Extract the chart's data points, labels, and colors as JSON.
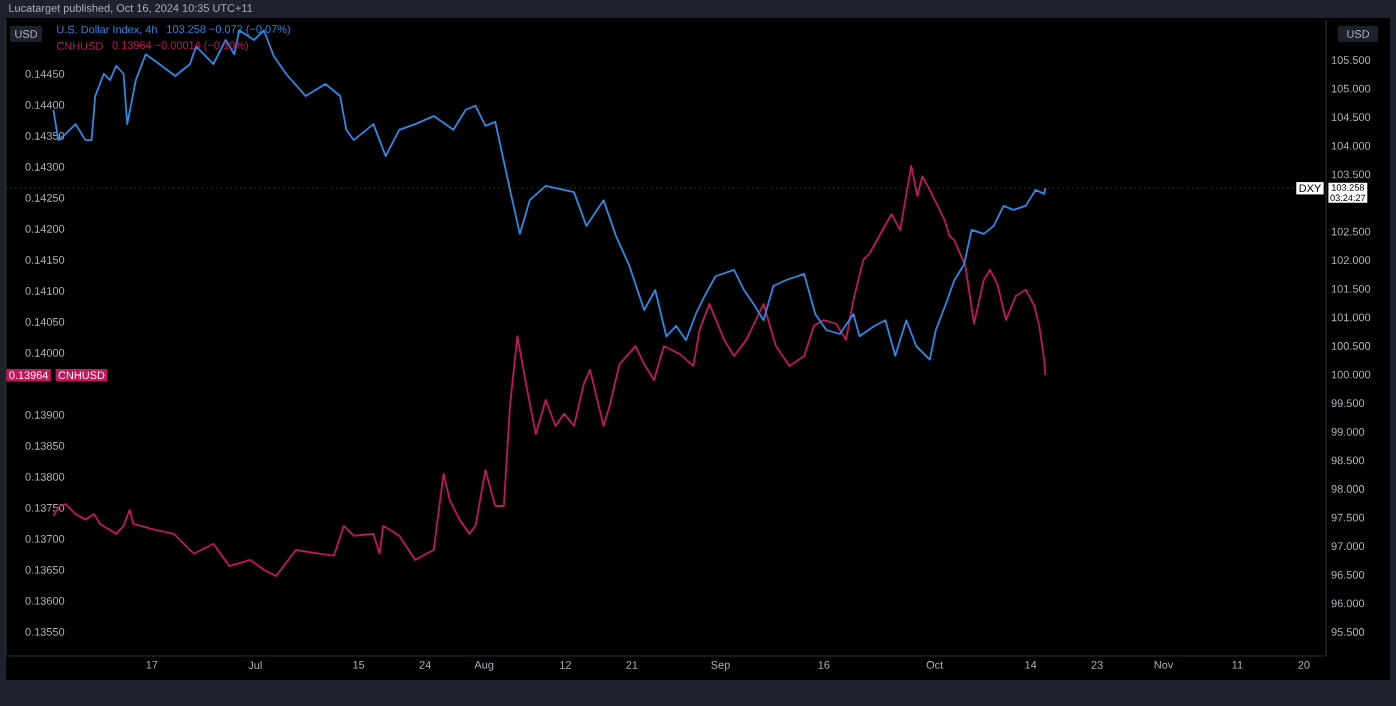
{
  "chart_data": {
    "type": "line",
    "annotations": [
      "Lucatarget published, Oct 16, 2024 10:35 UTC+11",
      "103.258  −0.072 (−0.07%)",
      "0.13964  −0.00014 (−0.10%)",
      "0.13964",
      "CNHUSD",
      "103.258",
      "03:24:27"
    ],
    "ylabel": "USD",
    "y2label": "USD",
    "legend": "top left",
    "marker": "none",
    "line_style": "solid",
    "grid": false,
    "xlim": [
      "2024-05-28T06:00",
      "2024-11-23"
    ],
    "xticks": [
      {
        "value": "2024-06-17",
        "label": "17"
      },
      {
        "value": "2024-07-01",
        "label": "Jul"
      },
      {
        "value": "2024-07-15",
        "label": "15"
      },
      {
        "value": "2024-07-24",
        "label": "24"
      },
      {
        "value": "2024-08-01",
        "label": "Aug"
      },
      {
        "value": "2024-08-12",
        "label": "12"
      },
      {
        "value": "2024-08-21",
        "label": "21"
      },
      {
        "value": "2024-09-02",
        "label": "Sep"
      },
      {
        "value": "2024-09-16",
        "label": "16"
      },
      {
        "value": "2024-10-01",
        "label": "Oct"
      },
      {
        "value": "2024-10-14",
        "label": "14"
      },
      {
        "value": "2024-10-23",
        "label": "23"
      },
      {
        "value": "2024-11-01",
        "label": "Nov"
      },
      {
        "value": "2024-11-11",
        "label": "11"
      },
      {
        "value": "2024-11-20",
        "label": "20"
      }
    ],
    "ylim": [
      0.13511,
      0.14537
    ],
    "yticks": [
      {
        "value": 0.1355,
        "label": "0.13550"
      },
      {
        "value": 0.136,
        "label": "0.13600"
      },
      {
        "value": 0.1365,
        "label": "0.13650"
      },
      {
        "value": 0.137,
        "label": "0.13700"
      },
      {
        "value": 0.1375,
        "label": "0.13750"
      },
      {
        "value": 0.138,
        "label": "0.13800"
      },
      {
        "value": 0.1385,
        "label": "0.13850"
      },
      {
        "value": 0.139,
        "label": "0.13900"
      },
      {
        "value": 0.14,
        "label": "0.14000"
      },
      {
        "value": 0.1405,
        "label": "0.14050"
      },
      {
        "value": 0.141,
        "label": "0.14100"
      },
      {
        "value": 0.1415,
        "label": "0.14150"
      },
      {
        "value": 0.142,
        "label": "0.14200"
      },
      {
        "value": 0.1425,
        "label": "0.14250"
      },
      {
        "value": 0.143,
        "label": "0.14300"
      },
      {
        "value": 0.1435,
        "label": "0.14350"
      },
      {
        "value": 0.144,
        "label": "0.14400"
      },
      {
        "value": 0.1445,
        "label": "0.14450"
      }
    ],
    "y2lim": [
      95.08,
      106.2
    ],
    "y2ticks": [
      {
        "value": 95.5,
        "label": "95.500"
      },
      {
        "value": 96.0,
        "label": "96.000"
      },
      {
        "value": 96.5,
        "label": "96.500"
      },
      {
        "value": 97.0,
        "label": "97.000"
      },
      {
        "value": 97.5,
        "label": "97.500"
      },
      {
        "value": 98.0,
        "label": "98.000"
      },
      {
        "value": 98.5,
        "label": "98.500"
      },
      {
        "value": 99.0,
        "label": "99.000"
      },
      {
        "value": 99.5,
        "label": "99.500"
      },
      {
        "value": 100.0,
        "label": "100.000"
      },
      {
        "value": 100.5,
        "label": "100.500"
      },
      {
        "value": 101.0,
        "label": "101.000"
      },
      {
        "value": 101.5,
        "label": "101.500"
      },
      {
        "value": 102.0,
        "label": "102.000"
      },
      {
        "value": 102.5,
        "label": "102.500"
      },
      {
        "value": 103.5,
        "label": "103.500"
      },
      {
        "value": 104.0,
        "label": "104.000"
      },
      {
        "value": 104.5,
        "label": "104.500"
      },
      {
        "value": 105.0,
        "label": "105.000"
      },
      {
        "value": 105.5,
        "label": "105.500"
      }
    ],
    "ref_lines": [
      {
        "axis": "y2",
        "value": 103.258,
        "label": "DXY",
        "line_style": "dotted",
        "color": "#787b86"
      }
    ],
    "series": [
      {
        "name": "U.S. Dollar Index, 4h",
        "color": "#2a8be8",
        "axis": "y2",
        "x": [
          "2024-06-03T16:00",
          "2024-06-04T08:00",
          "2024-06-05T08:00",
          "2024-06-06T16:00",
          "2024-06-08T00:00",
          "2024-06-08T20:00",
          "2024-06-09T08:00",
          "2024-06-10T12:00",
          "2024-06-11T08:00",
          "2024-06-12T04:00",
          "2024-06-13T04:00",
          "2024-06-13T16:00",
          "2024-06-14T20:00",
          "2024-06-16T04:00",
          "2024-06-18T00:00",
          "2024-06-20T04:00",
          "2024-06-22T04:00",
          "2024-06-23T00:00",
          "2024-06-25T08:00",
          "2024-06-27T00:00",
          "2024-06-28T04:00",
          "2024-06-28T20:00",
          "2024-06-30T20:00",
          "2024-07-02T04:00",
          "2024-07-03T12:00",
          "2024-07-05T04:00",
          "2024-07-07T20:00",
          "2024-07-10T12:00",
          "2024-07-12T12:00",
          "2024-07-13T08:00",
          "2024-07-14T08:00",
          "2024-07-17T00:00",
          "2024-07-18T16:00",
          "2024-07-20T12:00",
          "2024-07-22T16:00",
          "2024-07-25T04:00",
          "2024-07-27T20:00",
          "2024-07-29T12:00",
          "2024-07-30T20:00",
          "2024-08-01T04:00",
          "2024-08-02T12:00",
          "2024-08-04T12:00",
          "2024-08-05T20:00",
          "2024-08-07T04:00",
          "2024-08-09T08:00",
          "2024-08-13T04:00",
          "2024-08-14T20:00",
          "2024-08-17T04:00",
          "2024-08-18T20:00",
          "2024-08-20T16:00",
          "2024-08-22T16:00",
          "2024-08-24T04:00",
          "2024-08-25T16:00",
          "2024-08-27T00:00",
          "2024-08-28T08:00",
          "2024-08-29T16:00",
          "2024-08-31T00:00",
          "2024-09-01T08:00",
          "2024-09-03T20:00",
          "2024-09-05T04:00",
          "2024-09-06T12:00",
          "2024-09-07T20:00",
          "2024-09-09T04:00",
          "2024-09-10T20:00",
          "2024-09-13T08:00",
          "2024-09-14T20:00",
          "2024-09-16T08:00",
          "2024-09-18T04:00",
          "2024-09-20T00:00",
          "2024-09-20T20:00",
          "2024-09-22T20:00",
          "2024-09-24T08:00",
          "2024-09-25T16:00",
          "2024-09-27T04:00",
          "2024-09-28T12:00",
          "2024-09-30T08:00",
          "2024-10-01T04:00",
          "2024-10-02T12:00",
          "2024-10-03T16:00",
          "2024-10-05T00:00",
          "2024-10-06T00:00",
          "2024-10-07T16:00",
          "2024-10-09T00:00",
          "2024-10-10T08:00",
          "2024-10-11T16:00",
          "2024-10-13T08:00",
          "2024-10-14T16:00",
          "2024-10-15T20:00",
          "2024-10-16T00:00"
        ],
        "values": [
          104.63,
          104.1,
          104.21,
          104.38,
          104.1,
          104.1,
          104.87,
          105.26,
          105.15,
          105.4,
          105.26,
          104.38,
          105.15,
          105.6,
          105.43,
          105.22,
          105.43,
          105.74,
          105.43,
          105.85,
          105.6,
          106.02,
          105.85,
          106.02,
          105.57,
          105.26,
          104.87,
          105.08,
          104.87,
          104.28,
          104.1,
          104.38,
          103.82,
          104.28,
          104.38,
          104.52,
          104.28,
          104.63,
          104.7,
          104.35,
          104.42,
          103.23,
          102.46,
          103.05,
          103.3,
          103.19,
          102.6,
          103.05,
          102.43,
          101.9,
          101.13,
          101.48,
          100.67,
          100.85,
          100.6,
          101.06,
          101.41,
          101.72,
          101.83,
          101.48,
          101.23,
          100.95,
          101.55,
          101.65,
          101.76,
          101.06,
          100.78,
          100.71,
          101.06,
          100.67,
          100.85,
          100.95,
          100.33,
          100.95,
          100.5,
          100.26,
          100.78,
          101.23,
          101.65,
          101.93,
          102.53,
          102.46,
          102.6,
          102.95,
          102.88,
          102.95,
          103.23,
          103.16,
          103.26
        ]
      },
      {
        "name": "CNHUSD",
        "color": "#c2185b",
        "x": [
          "2024-06-03T16:00",
          "2024-06-04T12:00",
          "2024-06-05T08:00",
          "2024-06-06T16:00",
          "2024-06-08T00:00",
          "2024-06-09T04:00",
          "2024-06-10T00:00",
          "2024-06-12T04:00",
          "2024-06-13T04:00",
          "2024-06-14T00:00",
          "2024-06-14T12:00",
          "2024-06-17T08:00",
          "2024-06-20T00:00",
          "2024-06-22T16:00",
          "2024-06-25T08:00",
          "2024-06-27T12:00",
          "2024-06-30T08:00",
          "2024-07-02T04:00",
          "2024-07-03T20:00",
          "2024-07-06T12:00",
          "2024-07-09T16:00",
          "2024-07-11T16:00",
          "2024-07-13T00:00",
          "2024-07-14T08:00",
          "2024-07-17T00:00",
          "2024-07-17T20:00",
          "2024-07-18T08:00",
          "2024-07-20T12:00",
          "2024-07-22T16:00",
          "2024-07-24T04:00",
          "2024-07-25T04:00",
          "2024-07-26T12:00",
          "2024-07-27T08:00",
          "2024-07-28T16:00",
          "2024-07-30T00:00",
          "2024-07-30T20:00",
          "2024-08-01T04:00",
          "2024-08-02T12:00",
          "2024-08-03T16:00",
          "2024-08-04T12:00",
          "2024-08-05T12:00",
          "2024-08-06T16:00",
          "2024-08-08T00:00",
          "2024-08-09T08:00",
          "2024-08-10T16:00",
          "2024-08-11T20:00",
          "2024-08-13T04:00",
          "2024-08-14T12:00",
          "2024-08-15T08:00",
          "2024-08-17T04:00",
          "2024-08-18T00:00",
          "2024-08-19T08:00",
          "2024-08-21T12:00",
          "2024-08-22T16:00",
          "2024-08-24T00:00",
          "2024-08-25T08:00",
          "2024-08-27T12:00",
          "2024-08-29T08:00",
          "2024-08-30T04:00",
          "2024-08-31T12:00",
          "2024-09-02T12:00",
          "2024-09-03T20:00",
          "2024-09-05T12:00",
          "2024-09-07T20:00",
          "2024-09-09T12:00",
          "2024-09-11T08:00",
          "2024-09-13T08:00",
          "2024-09-14T16:00",
          "2024-09-16T00:00",
          "2024-09-17T16:00",
          "2024-09-19T00:00",
          "2024-09-20T00:00",
          "2024-09-21T08:00",
          "2024-09-22T04:00",
          "2024-09-25T04:00",
          "2024-09-26T08:00",
          "2024-09-27T20:00",
          "2024-09-28T16:00",
          "2024-09-29T08:00",
          "2024-09-30T08:00",
          "2024-10-02T08:00",
          "2024-10-03T00:00",
          "2024-10-03T16:00",
          "2024-10-05T04:00",
          "2024-10-06T08:00",
          "2024-10-07T16:00",
          "2024-10-08T12:00",
          "2024-10-09T12:00",
          "2024-10-10T16:00",
          "2024-10-12T00:00",
          "2024-10-13T08:00",
          "2024-10-14T12:00",
          "2024-10-15T04:00",
          "2024-10-15T20:00",
          "2024-10-16T00:00"
        ],
        "values": [
          0.13737,
          0.13753,
          0.13756,
          0.1374,
          0.13731,
          0.1374,
          0.13724,
          0.13708,
          0.13721,
          0.13747,
          0.13724,
          0.13715,
          0.13708,
          0.13676,
          0.13692,
          0.13656,
          0.13666,
          0.1365,
          0.1364,
          0.13682,
          0.13676,
          0.13673,
          0.13721,
          0.13705,
          0.13708,
          0.13676,
          0.13721,
          0.13705,
          0.13666,
          0.13676,
          0.13682,
          0.13805,
          0.13763,
          0.13731,
          0.13708,
          0.13721,
          0.13811,
          0.13753,
          0.13753,
          0.13915,
          0.14027,
          0.1395,
          0.13869,
          0.13924,
          0.13882,
          0.13902,
          0.13882,
          0.1395,
          0.13973,
          0.13882,
          0.13915,
          0.13982,
          0.14011,
          0.13982,
          0.13956,
          0.14011,
          0.13998,
          0.13979,
          0.14037,
          0.14079,
          0.14021,
          0.13995,
          0.14021,
          0.14079,
          0.14011,
          0.13979,
          0.13995,
          0.14044,
          0.14053,
          0.14047,
          0.14021,
          0.14085,
          0.1415,
          0.1416,
          0.14224,
          0.14198,
          0.14302,
          0.14253,
          0.14285,
          0.14263,
          0.14215,
          0.14189,
          0.14182,
          0.1414,
          0.14047,
          0.14118,
          0.14134,
          0.14111,
          0.14053,
          0.14092,
          0.14102,
          0.14076,
          0.14044,
          0.13989,
          0.13964
        ]
      }
    ]
  }
}
